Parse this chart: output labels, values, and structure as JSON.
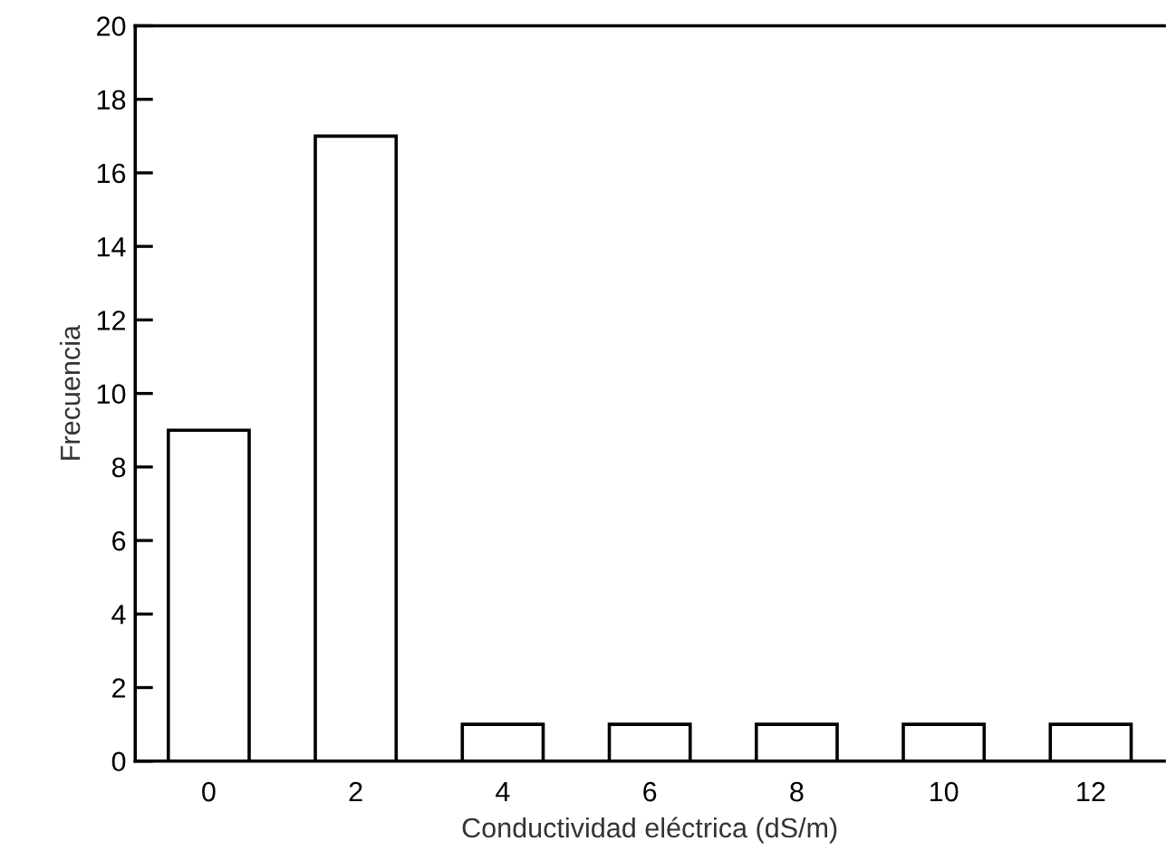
{
  "chart_data": {
    "type": "bar",
    "xlabel": "Conductividad eléctrica (dS/m)",
    "ylabel": "Frecuencia",
    "categories": [
      "0",
      "2",
      "4",
      "6",
      "8",
      "10",
      "12"
    ],
    "values": [
      9,
      17,
      1,
      1,
      1,
      1,
      1
    ],
    "color": "#ffffff",
    "ylim": [
      0,
      20
    ],
    "yticks": [
      0,
      2,
      4,
      6,
      8,
      10,
      12,
      14,
      16,
      18,
      20
    ],
    "grid": false
  }
}
